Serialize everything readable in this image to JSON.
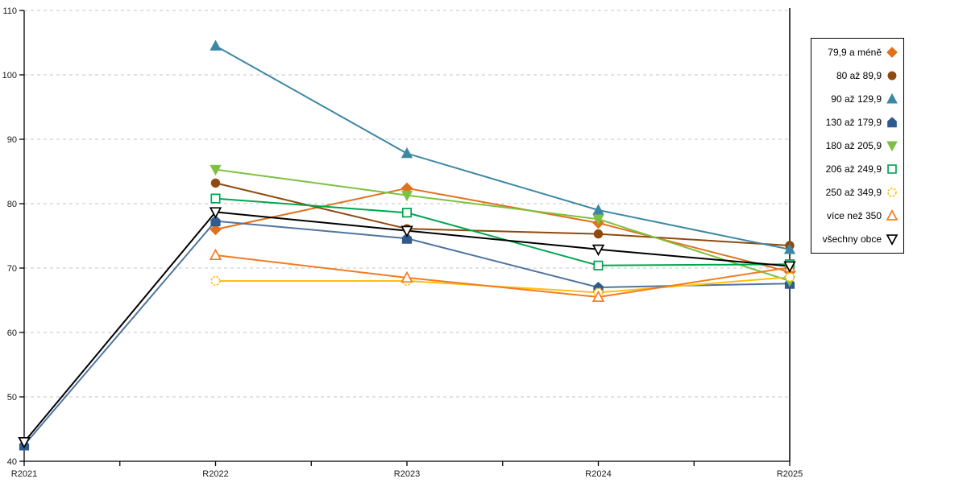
{
  "chart_data": {
    "type": "line",
    "categories": [
      "R2021",
      "R2022",
      "R2023",
      "R2024",
      "R2025"
    ],
    "y_tick_labels": [
      "40",
      "50",
      "60",
      "70",
      "80",
      "90",
      "100",
      "110"
    ],
    "ylim": [
      40,
      110
    ],
    "ytick_step": 10,
    "grid": "horizontal dashed, minor x ticks at midpoints",
    "legend_position": "right",
    "axis_color": "#000000",
    "grid_color": "#c6c6c6",
    "series": [
      {
        "name": "79,9 a méně",
        "color": "#e2711c",
        "marker": "diamond",
        "fill": "solid",
        "values": [
          null,
          76.0,
          82.4,
          77.0,
          69.4
        ]
      },
      {
        "name": "80 až 89,9",
        "color": "#8f4a0e",
        "marker": "circle",
        "fill": "solid",
        "values": [
          null,
          83.2,
          76.1,
          75.3,
          73.5
        ]
      },
      {
        "name": "90 až 129,9",
        "color": "#3c87a3",
        "marker": "triangle-up",
        "fill": "solid",
        "values": [
          null,
          104.5,
          87.8,
          79.0,
          72.9
        ]
      },
      {
        "name": "130 až 179,9",
        "color": "#2f5b8f",
        "line_color": "#50749e",
        "marker": "pentagon",
        "fill": "solid",
        "values": [
          42.5,
          77.3,
          74.6,
          67.0,
          67.6
        ]
      },
      {
        "name": "180 až 205,9",
        "color": "#7dc142",
        "marker": "triangle-down",
        "fill": "solid",
        "values": [
          null,
          85.3,
          81.3,
          77.6,
          68.0
        ]
      },
      {
        "name": "206 až 249,9",
        "color": "#00a550",
        "marker": "square",
        "fill": "hollow",
        "values": [
          null,
          80.8,
          78.6,
          70.4,
          70.6
        ]
      },
      {
        "name": "250 až 349,9",
        "color": "#fdc010",
        "marker": "circle",
        "fill": "hollow",
        "values": [
          null,
          68.0,
          68.0,
          66.2,
          68.6
        ]
      },
      {
        "name": "více než 350",
        "color": "#f47b20",
        "marker": "triangle-up",
        "fill": "hollow",
        "values": [
          null,
          72.0,
          68.5,
          65.5,
          70.1
        ]
      },
      {
        "name": "všechny obce",
        "color": "#000000",
        "marker": "triangle-down",
        "fill": "hollow",
        "values": [
          43.0,
          78.7,
          75.8,
          72.9,
          70.3
        ]
      }
    ]
  }
}
